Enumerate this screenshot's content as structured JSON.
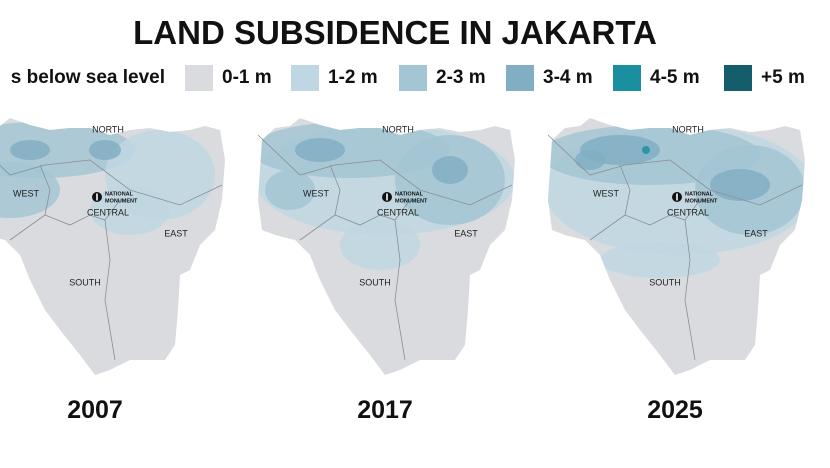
{
  "header": {
    "title": "LAND SUBSIDENCE IN JAKARTA"
  },
  "legend": {
    "label": "s below sea level",
    "items": [
      {
        "label": "0-1 m",
        "color": "#d9dbdf"
      },
      {
        "label": "1-2 m",
        "color": "#bfd7e2"
      },
      {
        "label": "2-3 m",
        "color": "#a3c5d4"
      },
      {
        "label": "3-4 m",
        "color": "#82aec3"
      },
      {
        "label": "4-5 m",
        "color": "#1a8f9f"
      },
      {
        "label": "+5 m",
        "color": "#145e6b"
      }
    ]
  },
  "maps": [
    {
      "year": "2007",
      "labels": {
        "north": "NORTH",
        "west": "WEST",
        "central": "CENTRAL",
        "east": "EAST",
        "south": "SOUTH",
        "monument": [
          "NATIONAL",
          "MONUMENT"
        ]
      }
    },
    {
      "year": "2017",
      "labels": {
        "north": "NORTH",
        "west": "WEST",
        "central": "CENTRAL",
        "east": "EAST",
        "south": "SOUTH",
        "monument": [
          "NATIONAL",
          "MONUMENT"
        ]
      }
    },
    {
      "year": "2025",
      "labels": {
        "north": "NORTH",
        "west": "WEST",
        "central": "CENTRAL",
        "east": "EAST",
        "south": "SOUTH",
        "monument": [
          "NATIONAL",
          "MONUMENT"
        ]
      }
    }
  ]
}
